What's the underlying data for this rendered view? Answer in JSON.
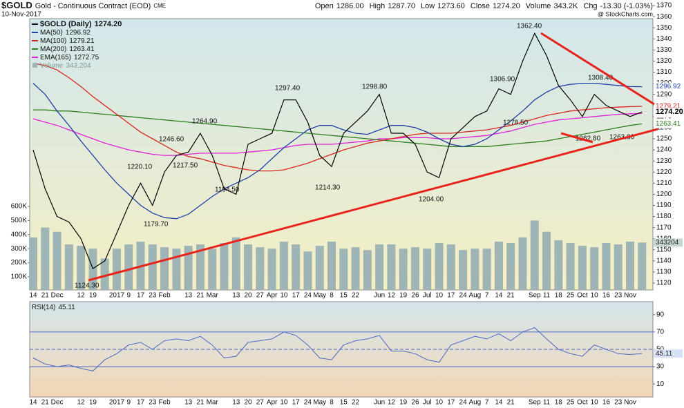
{
  "chart_data": {
    "type": "stock",
    "symbol": "$GOLD",
    "title": "Gold - Continuous Contract (EOD)",
    "exchange": "CME",
    "date": "10-Nov-2017",
    "credit": "@ StockCharts.com",
    "header": [
      {
        "label": "Open",
        "value": "1286.00"
      },
      {
        "label": "High",
        "value": "1287.70"
      },
      {
        "label": "Low",
        "value": "1273.60"
      },
      {
        "label": "Close",
        "value": "1274.20"
      },
      {
        "label": "Volume",
        "value": "343.2K"
      },
      {
        "label": "Chg",
        "value": "-13.30 (-1.03%)"
      }
    ],
    "categories": [
      "14",
      "21",
      "Dec",
      null,
      "12",
      "19",
      null,
      "2017",
      "9",
      "17",
      "23",
      "Feb",
      null,
      "13",
      "21",
      "Mar",
      null,
      "13",
      "20",
      "27",
      "Apr",
      "10",
      "17",
      "24",
      "May",
      "8",
      "15",
      "22",
      null,
      "Jun",
      "12",
      "19",
      "26",
      "Jul",
      "10",
      "17",
      "24",
      "Aug",
      "7",
      "14",
      "21",
      null,
      "Sep",
      "11",
      "18",
      "25",
      "Oct",
      "10",
      "16",
      "23",
      "Nov",
      null
    ],
    "series": [
      {
        "name": "$GOLD (Daily)",
        "last_label": "1274.20",
        "color": "#000000",
        "values": [
          1240,
          1205,
          1180,
          1175,
          1160,
          1133,
          1140,
          1165,
          1190,
          1210,
          1190,
          1220,
          1235,
          1238,
          1255,
          1235,
          1205,
          1200,
          1245,
          1250,
          1255,
          1285,
          1285,
          1265,
          1235,
          1225,
          1255,
          1265,
          1275,
          1290,
          1255,
          1255,
          1245,
          1220,
          1215,
          1250,
          1260,
          1270,
          1275,
          1295,
          1290,
          1320,
          1345,
          1325,
          1298,
          1285,
          1270,
          1290,
          1280,
          1275,
          1270,
          1274.2
        ]
      },
      {
        "name": "MA(50)",
        "last_label": "1296.92",
        "color": "#1f3fa8",
        "values": [
          1300,
          1290,
          1275,
          1262,
          1248,
          1235,
          1222,
          1210,
          1200,
          1190,
          1183,
          1179,
          1178,
          1182,
          1190,
          1198,
          1205,
          1210,
          1215,
          1222,
          1232,
          1242,
          1250,
          1258,
          1262,
          1262,
          1258,
          1255,
          1254,
          1258,
          1262,
          1262,
          1260,
          1256,
          1250,
          1245,
          1243,
          1245,
          1250,
          1258,
          1266,
          1275,
          1285,
          1292,
          1297,
          1299,
          1300,
          1300,
          1299,
          1298,
          1297,
          1296.92
        ]
      },
      {
        "name": "MA(100)",
        "last_label": "1279.21",
        "color": "#d8251c",
        "values": [
          1318,
          1316,
          1312,
          1305,
          1297,
          1288,
          1280,
          1272,
          1264,
          1256,
          1250,
          1244,
          1238,
          1234,
          1232,
          1229,
          1226,
          1224,
          1222,
          1221,
          1221,
          1222,
          1225,
          1228,
          1232,
          1236,
          1240,
          1243,
          1246,
          1248,
          1250,
          1252,
          1254,
          1255,
          1255,
          1255,
          1256,
          1257,
          1258,
          1260,
          1262,
          1265,
          1268,
          1271,
          1273,
          1275,
          1276,
          1277,
          1278,
          1278.5,
          1279,
          1279.21
        ]
      },
      {
        "name": "MA(200)",
        "last_label": "1263.41",
        "color": "#2e7d1f",
        "values": [
          1276,
          1276,
          1275,
          1275,
          1274,
          1273,
          1272,
          1271,
          1270,
          1269,
          1268,
          1267,
          1266,
          1265,
          1264,
          1263,
          1262,
          1261,
          1260,
          1259,
          1258,
          1257,
          1256,
          1255,
          1254,
          1253,
          1252,
          1251,
          1250,
          1249,
          1248,
          1247,
          1246,
          1245,
          1244,
          1243,
          1243,
          1243,
          1243,
          1244,
          1245,
          1246,
          1247,
          1248,
          1250,
          1252,
          1254,
          1256,
          1258,
          1260,
          1262,
          1263.41
        ]
      },
      {
        "name": "EMA(165)",
        "last_label": "1272.75",
        "color": "#e020d8",
        "values": [
          1268,
          1265,
          1262,
          1258,
          1254,
          1250,
          1246,
          1243,
          1240,
          1238,
          1236,
          1235,
          1235,
          1236,
          1237,
          1237,
          1237,
          1237,
          1238,
          1239,
          1240,
          1242,
          1244,
          1245,
          1245,
          1245,
          1246,
          1247,
          1248,
          1250,
          1250,
          1251,
          1251,
          1251,
          1250,
          1250,
          1251,
          1252,
          1253,
          1255,
          1257,
          1260,
          1263,
          1265,
          1267,
          1268,
          1269,
          1270,
          1271,
          1272,
          1272.5,
          1272.75
        ]
      }
    ],
    "volume": {
      "name": "Volume",
      "last_label": "343,204",
      "color": "#9fb4b4",
      "values": [
        380000,
        450000,
        420000,
        330000,
        320000,
        300000,
        230000,
        300000,
        330000,
        350000,
        330000,
        310000,
        300000,
        320000,
        330000,
        300000,
        340000,
        380000,
        330000,
        310000,
        300000,
        350000,
        330000,
        280000,
        320000,
        350000,
        300000,
        310000,
        290000,
        330000,
        330000,
        300000,
        310000,
        300000,
        340000,
        330000,
        290000,
        300000,
        300000,
        350000,
        340000,
        380000,
        500000,
        420000,
        360000,
        340000,
        320000,
        310000,
        340000,
        330000,
        350000,
        343204
      ]
    },
    "ylim": [
      1113.8,
      1371.9
    ],
    "yticks": [
      1120,
      1130,
      1140,
      1150,
      1160,
      1170,
      1180,
      1190,
      1200,
      1210,
      1220,
      1230,
      1240,
      1250,
      1260,
      1270,
      1280,
      1290,
      1300,
      1310,
      1320,
      1330,
      1340,
      1350,
      1360,
      1370
    ],
    "y2lim": [
      6900,
      2041000
    ],
    "y2ticks": [
      {
        "value": 100000,
        "label": "100K"
      },
      {
        "value": 200000,
        "label": "200K"
      },
      {
        "value": 300000,
        "label": "300K"
      },
      {
        "value": 400000,
        "label": "400K"
      },
      {
        "value": 500000,
        "label": "500K"
      },
      {
        "value": 600000,
        "label": "600K"
      }
    ],
    "annotations": [
      {
        "text": "1124.30"
      },
      {
        "text": "1220.10"
      },
      {
        "text": "1246.60"
      },
      {
        "text": "1264.90"
      },
      {
        "text": "1179.70"
      },
      {
        "text": "1217.50"
      },
      {
        "text": "1194.50"
      },
      {
        "text": "1297.40"
      },
      {
        "text": "1214.30"
      },
      {
        "text": "1298.80"
      },
      {
        "text": "1204.00"
      },
      {
        "text": "1306.90"
      },
      {
        "text": "1278.50"
      },
      {
        "text": "1362.40"
      },
      {
        "text": "1308.40"
      },
      {
        "text": "1262.80"
      },
      {
        "text": "1263.80"
      }
    ],
    "rsi": {
      "name": "RSI(14)",
      "last_label": "45.11",
      "color": "#4a66c4",
      "values": [
        40,
        33,
        30,
        32,
        28,
        25,
        38,
        45,
        55,
        58,
        50,
        60,
        62,
        60,
        65,
        55,
        40,
        42,
        58,
        60,
        62,
        70,
        66,
        55,
        40,
        38,
        55,
        60,
        62,
        66,
        48,
        48,
        45,
        38,
        35,
        55,
        60,
        65,
        62,
        68,
        60,
        70,
        75,
        62,
        50,
        45,
        42,
        55,
        50,
        45,
        44,
        45.11
      ],
      "ylim": [
        -5,
        105
      ],
      "yticks": [
        10,
        30,
        50,
        70,
        90
      ]
    }
  }
}
